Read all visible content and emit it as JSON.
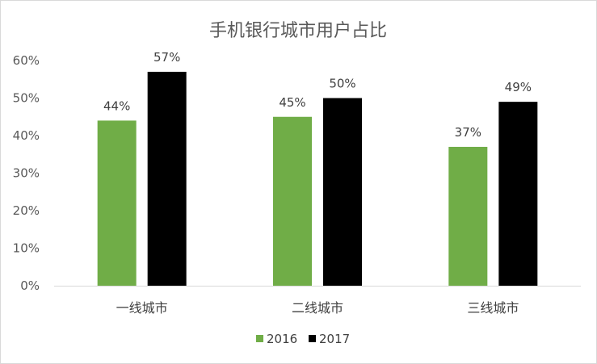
{
  "chart_data": {
    "type": "bar",
    "title": "手机银行城市用户占比",
    "categories": [
      "一线城市",
      "二线城市",
      "三线城市"
    ],
    "series": [
      {
        "name": "2016",
        "values": [
          44,
          45,
          37
        ],
        "labels": [
          "44%",
          "45%",
          "37%"
        ],
        "color": "#70ad47"
      },
      {
        "name": "2017",
        "values": [
          57,
          50,
          49
        ],
        "labels": [
          "57%",
          "50%",
          "49%"
        ],
        "color": "#000000"
      }
    ],
    "ylim": [
      0,
      60
    ],
    "yticks": [
      "0%",
      "10%",
      "20%",
      "30%",
      "40%",
      "50%",
      "60%"
    ],
    "grid": false,
    "legend_position": "bottom"
  }
}
